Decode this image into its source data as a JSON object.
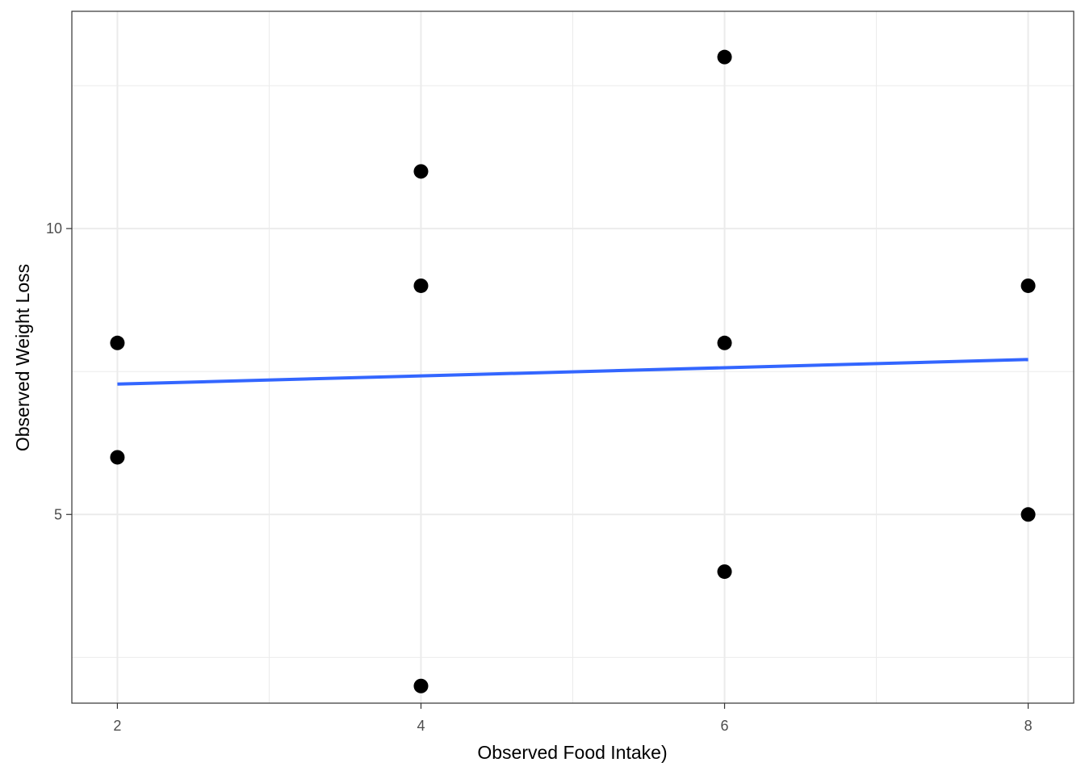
{
  "chart_data": {
    "type": "scatter",
    "xlabel": "Observed Food Intake)",
    "ylabel": "Observed Weight Loss",
    "xlim": [
      1.7,
      8.3
    ],
    "ylim": [
      1.7,
      13.8
    ],
    "x_ticks": [
      2,
      4,
      6,
      8
    ],
    "y_ticks": [
      5,
      10
    ],
    "x_minor_gridlines": [
      3,
      5,
      7
    ],
    "y_minor_gridlines": [
      2.5,
      7.5,
      12.5
    ],
    "grid": true,
    "legend": "none",
    "series": [
      {
        "points": [
          {
            "x": 2,
            "y": 8
          },
          {
            "x": 2,
            "y": 6
          },
          {
            "x": 4,
            "y": 11
          },
          {
            "x": 4,
            "y": 9
          },
          {
            "x": 4,
            "y": 2
          },
          {
            "x": 6,
            "y": 13
          },
          {
            "x": 6,
            "y": 8
          },
          {
            "x": 6,
            "y": 4
          },
          {
            "x": 8,
            "y": 9
          },
          {
            "x": 8,
            "y": 5
          }
        ]
      }
    ],
    "trend_line": {
      "x": [
        2,
        8
      ],
      "y": [
        7.28,
        7.71
      ]
    },
    "colors": {
      "points": "#000000",
      "trend_line": "#3366FF",
      "grid": "#EBEBEB",
      "panel_border": "#333333",
      "tick_text": "#4D4D4D"
    }
  }
}
